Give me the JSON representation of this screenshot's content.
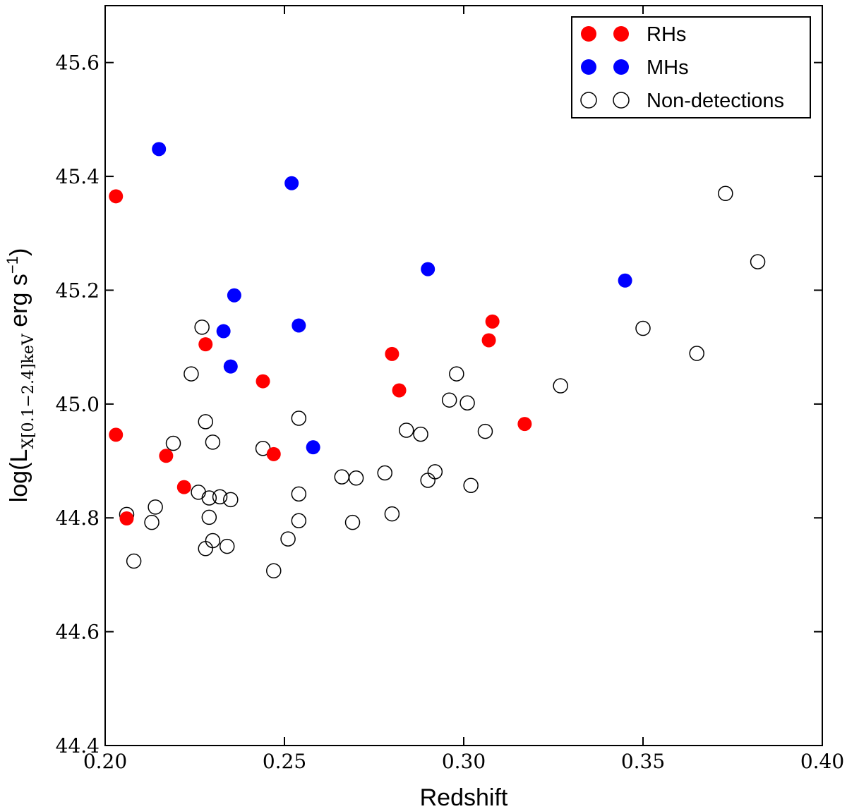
{
  "chart_data": {
    "type": "scatter",
    "xlabel": "Redshift",
    "ylabel": "log(L",
    "ylabel_sub": "X[0.1−2.4]keV",
    "ylabel_unit": " erg s",
    "ylabel_sup": "−1",
    "ylabel_close": ")",
    "xlim": [
      0.2,
      0.4
    ],
    "ylim": [
      44.4,
      45.7
    ],
    "xticks": [
      0.2,
      0.25,
      0.3,
      0.35,
      0.4
    ],
    "xtick_labels": [
      "0.20",
      "0.25",
      "0.30",
      "0.35",
      "0.40"
    ],
    "yticks": [
      44.4,
      44.6,
      44.8,
      45.0,
      45.2,
      45.4,
      45.6
    ],
    "ytick_labels": [
      "44.4",
      "44.6",
      "44.8",
      "45.0",
      "45.2",
      "45.4",
      "45.6"
    ],
    "grid": false,
    "legend_position": "top-right",
    "series": [
      {
        "name": "RHs",
        "color": "#ff0000",
        "marker": "filled-circle",
        "points": [
          [
            0.203,
            45.365
          ],
          [
            0.203,
            44.946
          ],
          [
            0.206,
            44.799
          ],
          [
            0.217,
            44.909
          ],
          [
            0.222,
            44.854
          ],
          [
            0.228,
            45.105
          ],
          [
            0.244,
            45.04
          ],
          [
            0.247,
            44.912
          ],
          [
            0.28,
            45.088
          ],
          [
            0.282,
            45.024
          ],
          [
            0.307,
            45.112
          ],
          [
            0.308,
            45.145
          ],
          [
            0.317,
            44.965
          ]
        ]
      },
      {
        "name": "MHs",
        "color": "#0000ff",
        "marker": "filled-circle",
        "points": [
          [
            0.215,
            45.448
          ],
          [
            0.252,
            45.388
          ],
          [
            0.29,
            45.237
          ],
          [
            0.345,
            45.217
          ],
          [
            0.236,
            45.191
          ],
          [
            0.254,
            45.138
          ],
          [
            0.233,
            45.128
          ],
          [
            0.235,
            45.066
          ],
          [
            0.258,
            44.924
          ]
        ]
      },
      {
        "name": "Non-detections",
        "color": "#000000",
        "marker": "open-circle",
        "points": [
          [
            0.373,
            45.37
          ],
          [
            0.382,
            45.25
          ],
          [
            0.35,
            45.133
          ],
          [
            0.365,
            45.089
          ],
          [
            0.327,
            45.032
          ],
          [
            0.298,
            45.053
          ],
          [
            0.296,
            45.007
          ],
          [
            0.301,
            45.002
          ],
          [
            0.306,
            44.952
          ],
          [
            0.284,
            44.954
          ],
          [
            0.288,
            44.947
          ],
          [
            0.292,
            44.881
          ],
          [
            0.29,
            44.866
          ],
          [
            0.302,
            44.857
          ],
          [
            0.278,
            44.879
          ],
          [
            0.266,
            44.872
          ],
          [
            0.27,
            44.87
          ],
          [
            0.269,
            44.792
          ],
          [
            0.28,
            44.807
          ],
          [
            0.254,
            44.975
          ],
          [
            0.244,
            44.922
          ],
          [
            0.254,
            44.842
          ],
          [
            0.254,
            44.795
          ],
          [
            0.251,
            44.763
          ],
          [
            0.247,
            44.707
          ],
          [
            0.227,
            45.135
          ],
          [
            0.224,
            45.053
          ],
          [
            0.228,
            44.969
          ],
          [
            0.23,
            44.933
          ],
          [
            0.219,
            44.931
          ],
          [
            0.214,
            44.819
          ],
          [
            0.213,
            44.792
          ],
          [
            0.206,
            44.806
          ],
          [
            0.208,
            44.724
          ],
          [
            0.226,
            44.845
          ],
          [
            0.229,
            44.835
          ],
          [
            0.232,
            44.837
          ],
          [
            0.235,
            44.832
          ],
          [
            0.229,
            44.801
          ],
          [
            0.23,
            44.76
          ],
          [
            0.228,
            44.746
          ],
          [
            0.234,
            44.75
          ]
        ]
      }
    ]
  }
}
